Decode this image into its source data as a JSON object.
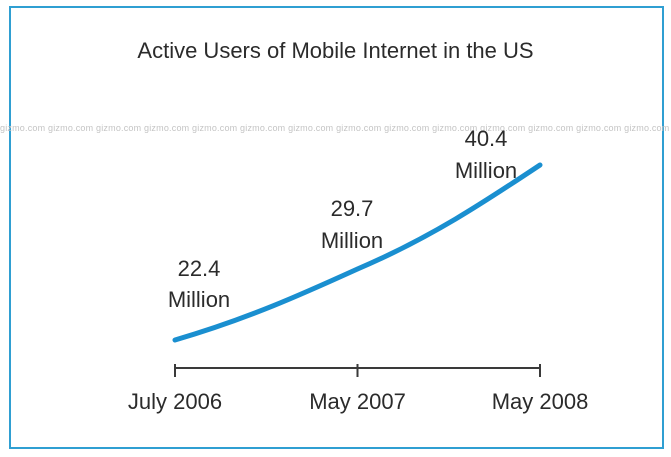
{
  "chart_data": {
    "type": "line",
    "title": "Active Users of Mobile Internet in the US",
    "categories": [
      "July 2006",
      "May 2007",
      "May 2008"
    ],
    "series": [
      {
        "values": [
          22.4,
          29.7,
          40.4
        ],
        "labels": [
          [
            "22.4",
            "Million"
          ],
          [
            "29.7",
            "Million"
          ],
          [
            "40.4",
            "Million"
          ]
        ],
        "color": "#1a8fd0"
      }
    ],
    "xlabel": "",
    "ylabel": "",
    "grid": false
  },
  "watermark": "gizmo.com"
}
